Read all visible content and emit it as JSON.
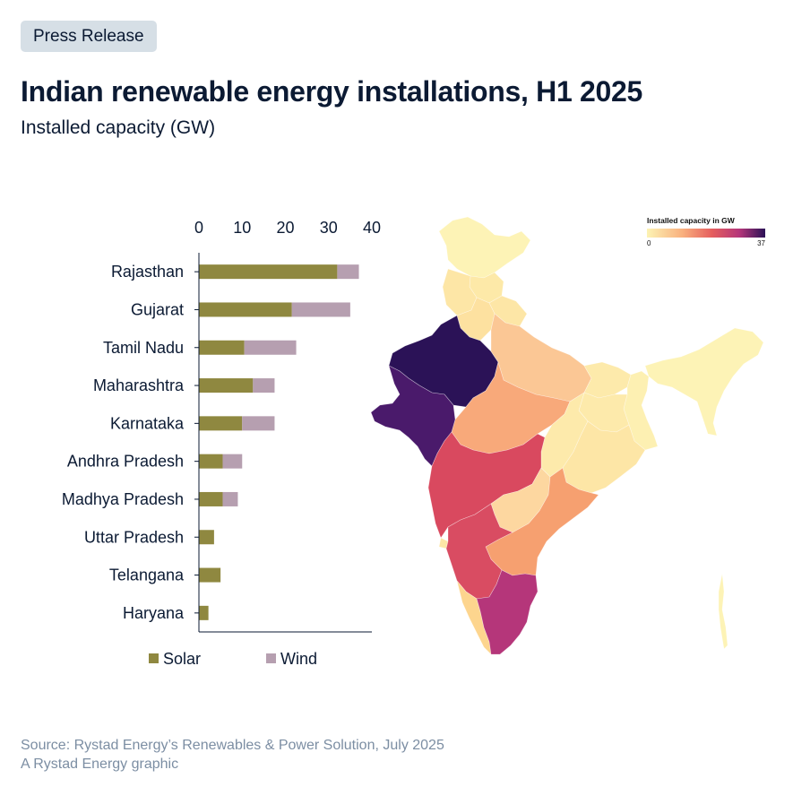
{
  "badge": "Press Release",
  "title": "Indian renewable energy installations, H1 2025",
  "subtitle": "Installed capacity (GW)",
  "footer": {
    "source": "Source: Rystad Energy’s Renewables & Power Solution, July 2025",
    "credit": "A Rystad Energy graphic"
  },
  "colors": {
    "solar": "#8f8840",
    "wind": "#b69fb0",
    "axis": "#0b1a33"
  },
  "chart_data": [
    {
      "type": "bar",
      "orientation": "horizontal",
      "stacked": true,
      "categories": [
        "Rajasthan",
        "Gujarat",
        "Tamil Nadu",
        "Maharashtra",
        "Karnataka",
        "Andhra Pradesh",
        "Madhya Pradesh",
        "Uttar Pradesh",
        "Telangana",
        "Haryana"
      ],
      "series": [
        {
          "name": "Solar",
          "values": [
            32,
            21.5,
            10.5,
            12.5,
            10,
            5.5,
            5.5,
            3.5,
            5,
            2.2
          ]
        },
        {
          "name": "Wind",
          "values": [
            5,
            13.5,
            12,
            5,
            7.5,
            4.5,
            3.5,
            0,
            0,
            0
          ]
        }
      ],
      "xlim": [
        0,
        40
      ],
      "xticks": [
        "0",
        "10",
        "20",
        "30",
        "40"
      ],
      "legend_position": "bottom-left"
    },
    {
      "type": "choropleth",
      "legend_title": "Installed capacity in GW",
      "scale_min": "0",
      "scale_max": "37",
      "scale_colors": [
        "#fcf3b4",
        "#f9b07e",
        "#e55e5e",
        "#b5367a",
        "#2b1257"
      ]
    }
  ]
}
